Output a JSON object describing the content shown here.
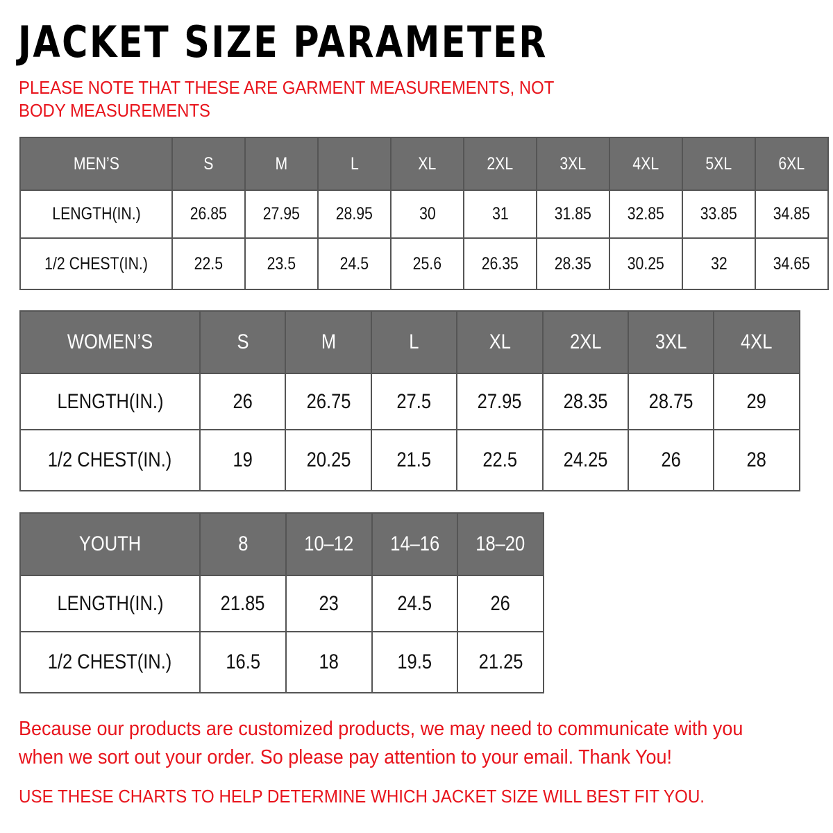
{
  "title": "JACKET SIZE PARAMETER",
  "note": "PLEASE NOTE THAT THESE ARE GARMENT MEASUREMENTS, NOT BODY MEASUREMENTS",
  "colors": {
    "header_bg": "#6e6e6e",
    "accent_red": "#e8141c"
  },
  "tables": {
    "men": {
      "header": [
        "MEN’S",
        "S",
        "M",
        "L",
        "XL",
        "2XL",
        "3XL",
        "4XL",
        "5XL",
        "6XL"
      ],
      "rows": [
        [
          "LENGTH(IN.)",
          "26.85",
          "27.95",
          "28.95",
          "30",
          "31",
          "31.85",
          "32.85",
          "33.85",
          "34.85"
        ],
        [
          "1/2 CHEST(IN.)",
          "22.5",
          "23.5",
          "24.5",
          "25.6",
          "26.35",
          "28.35",
          "30.25",
          "32",
          "34.65"
        ]
      ]
    },
    "women": {
      "header": [
        "WOMEN’S",
        "S",
        "M",
        "L",
        "XL",
        "2XL",
        "3XL",
        "4XL"
      ],
      "rows": [
        [
          "LENGTH(IN.)",
          "26",
          "26.75",
          "27.5",
          "27.95",
          "28.35",
          "28.75",
          "29"
        ],
        [
          "1/2 CHEST(IN.)",
          "19",
          "20.25",
          "21.5",
          "22.5",
          "24.25",
          "26",
          "28"
        ]
      ]
    },
    "youth": {
      "header": [
        "YOUTH",
        "8",
        "10–12",
        "14–16",
        "18–20"
      ],
      "rows": [
        [
          "LENGTH(IN.)",
          "21.85",
          "23",
          "24.5",
          "26"
        ],
        [
          "1/2 CHEST(IN.)",
          "16.5",
          "18",
          "19.5",
          "21.25"
        ]
      ]
    }
  },
  "footer": {
    "message": "Because our products are customized products, we may need to communicate with you when we sort out your order. So please pay attention to your email. Thank You!",
    "advice": "USE THESE CHARTS TO HELP DETERMINE WHICH JACKET SIZE WILL BEST FIT YOU."
  }
}
